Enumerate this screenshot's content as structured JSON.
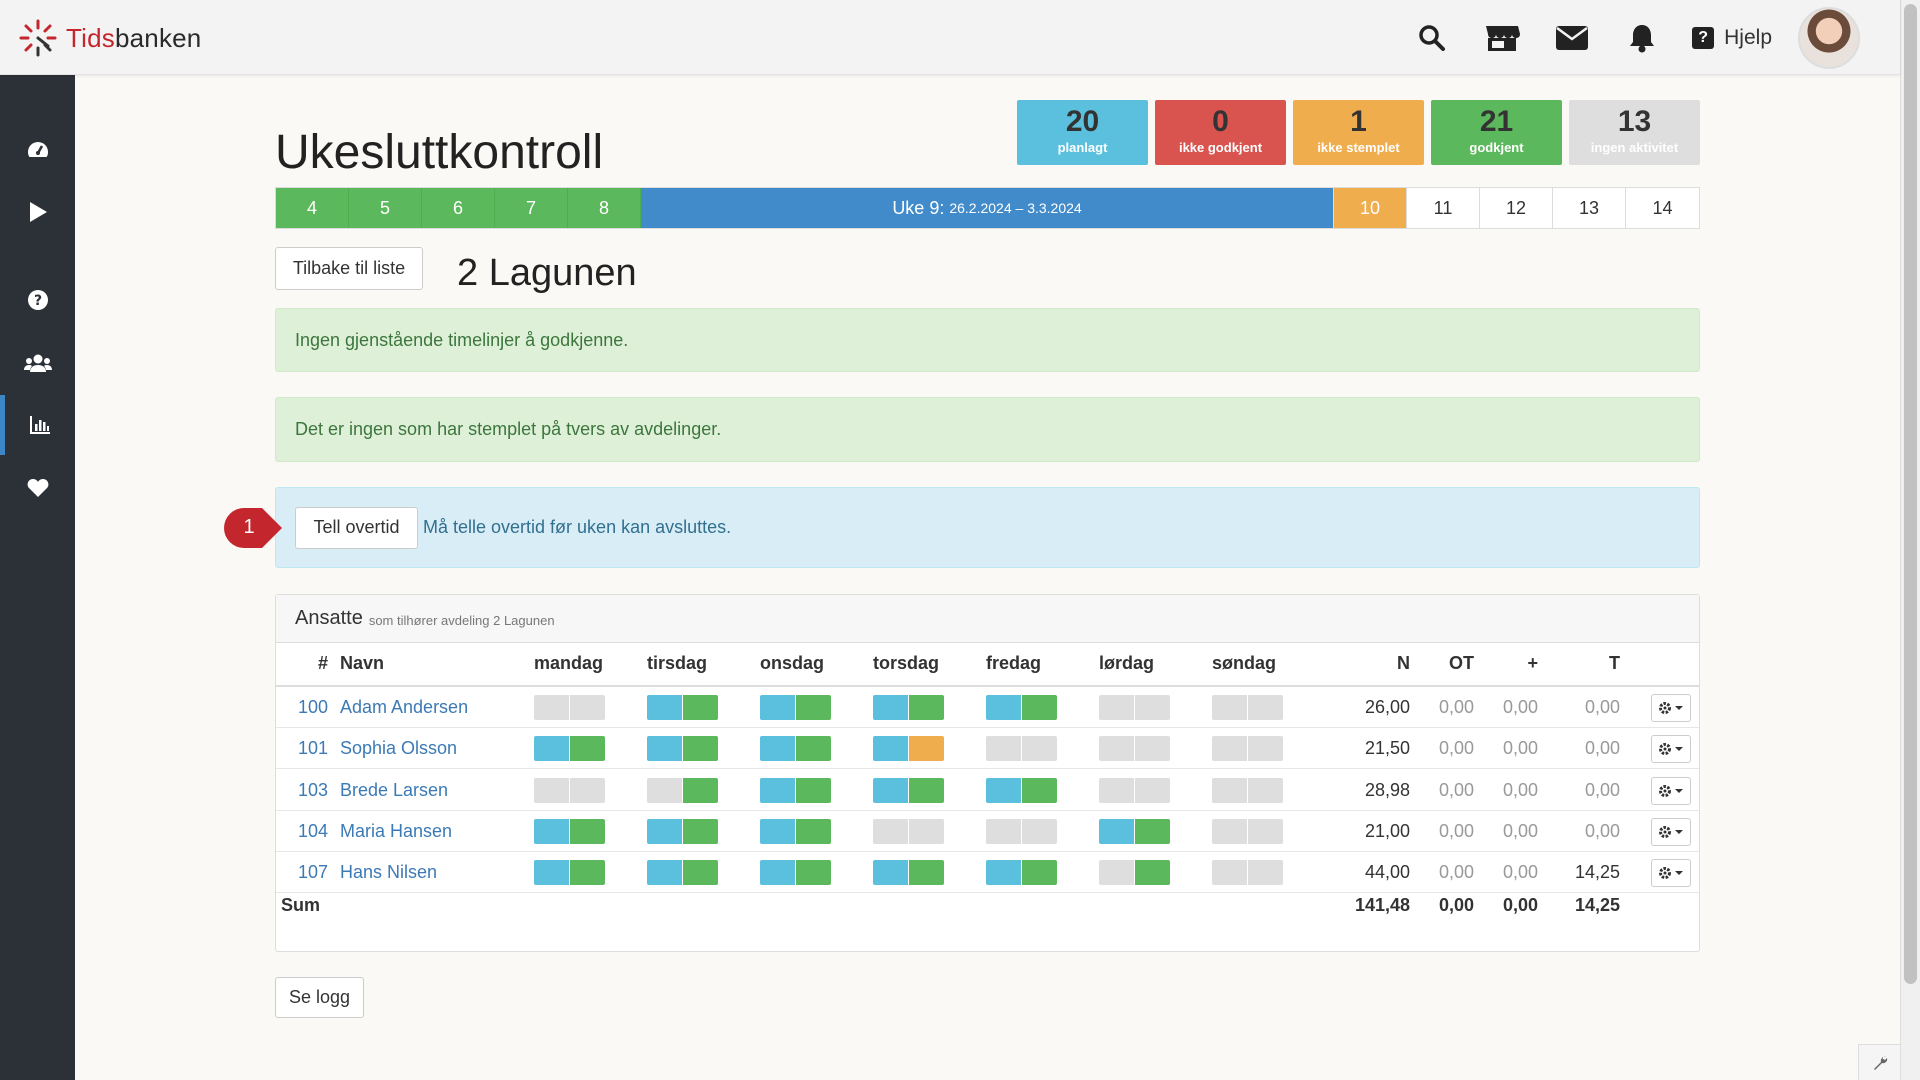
{
  "app": {
    "name_part1": "Tids",
    "name_part2": "banken"
  },
  "topbar": {
    "help_label": "Hjelp"
  },
  "page": {
    "title": "Ukesluttkontroll",
    "department": "2 Lagunen",
    "back_label": "Tilbake til liste",
    "log_label": "Se logg"
  },
  "stats": [
    {
      "value": "20",
      "label": "planlagt",
      "color": "#5bc0de"
    },
    {
      "value": "0",
      "label": "ikke godkjent",
      "color": "#d9534f"
    },
    {
      "value": "1",
      "label": "ikke stemplet",
      "color": "#f0ad4e"
    },
    {
      "value": "21",
      "label": "godkjent",
      "color": "#5cb85c"
    },
    {
      "value": "13",
      "label": "ingen aktivitet",
      "color": "#dedede"
    }
  ],
  "weeks": {
    "before": [
      "4",
      "5",
      "6",
      "7",
      "8"
    ],
    "current_label": "Uke 9:",
    "current_range": "26.2.2024 – 3.3.2024",
    "after": [
      "10",
      "11",
      "12",
      "13",
      "14"
    ]
  },
  "alerts": {
    "no_timelines": "Ingen gjenstående timelinjer å godkjenne.",
    "no_cross_dept": "Det er ingen som har stemplet på tvers av avdelinger.",
    "overtime_button": "Tell overtid",
    "overtime_text": "Må telle overtid før uken kan avsluttes.",
    "step_badge": "1"
  },
  "panel": {
    "title": "Ansatte",
    "subtitle": "som tilhører avdeling 2 Lagunen",
    "headers": {
      "num": "#",
      "name": "Navn",
      "days": [
        "mandag",
        "tirsdag",
        "onsdag",
        "torsdag",
        "fredag",
        "lørdag",
        "søndag"
      ],
      "n": "N",
      "ot": "OT",
      "plus": "+",
      "t": "T"
    },
    "rows": [
      {
        "id": "100",
        "name": "Adam Andersen",
        "n": "26,00",
        "ot": "0,00",
        "plus": "0,00",
        "t": "0,00",
        "days": [
          [
            "gray",
            "gray"
          ],
          [
            "blue",
            "green"
          ],
          [
            "blue",
            "green"
          ],
          [
            "blue",
            "green"
          ],
          [
            "blue",
            "green"
          ],
          [
            "gray",
            "gray"
          ],
          [
            "gray",
            "gray"
          ]
        ]
      },
      {
        "id": "101",
        "name": "Sophia Olsson",
        "n": "21,50",
        "ot": "0,00",
        "plus": "0,00",
        "t": "0,00",
        "days": [
          [
            "blue",
            "green"
          ],
          [
            "blue",
            "green"
          ],
          [
            "blue",
            "green"
          ],
          [
            "blue",
            "orange"
          ],
          [
            "gray",
            "gray"
          ],
          [
            "gray",
            "gray"
          ],
          [
            "gray",
            "gray"
          ]
        ]
      },
      {
        "id": "103",
        "name": "Brede Larsen",
        "n": "28,98",
        "ot": "0,00",
        "plus": "0,00",
        "t": "0,00",
        "days": [
          [
            "gray",
            "gray"
          ],
          [
            "gray",
            "green"
          ],
          [
            "blue",
            "green"
          ],
          [
            "blue",
            "green"
          ],
          [
            "blue",
            "green"
          ],
          [
            "gray",
            "gray"
          ],
          [
            "gray",
            "gray"
          ]
        ]
      },
      {
        "id": "104",
        "name": "Maria Hansen",
        "n": "21,00",
        "ot": "0,00",
        "plus": "0,00",
        "t": "0,00",
        "days": [
          [
            "blue",
            "green"
          ],
          [
            "blue",
            "green"
          ],
          [
            "blue",
            "green"
          ],
          [
            "gray",
            "gray"
          ],
          [
            "gray",
            "gray"
          ],
          [
            "blue",
            "green"
          ],
          [
            "gray",
            "gray"
          ]
        ]
      },
      {
        "id": "107",
        "name": "Hans Nilsen",
        "n": "44,00",
        "ot": "0,00",
        "plus": "0,00",
        "t": "14,25",
        "days": [
          [
            "blue",
            "green"
          ],
          [
            "blue",
            "green"
          ],
          [
            "blue",
            "green"
          ],
          [
            "blue",
            "green"
          ],
          [
            "blue",
            "green"
          ],
          [
            "gray",
            "green"
          ],
          [
            "gray",
            "gray"
          ]
        ]
      }
    ],
    "sum": {
      "label": "Sum",
      "n": "141,48",
      "ot": "0,00",
      "plus": "0,00",
      "t": "14,25"
    }
  },
  "icons": {
    "top": [
      "search-icon",
      "store-icon",
      "mail-icon",
      "bell-icon",
      "help-icon"
    ],
    "sidebar": [
      "dashboard-icon",
      "play-icon",
      "question-icon",
      "users-icon",
      "chart-icon",
      "heart-icon"
    ]
  }
}
